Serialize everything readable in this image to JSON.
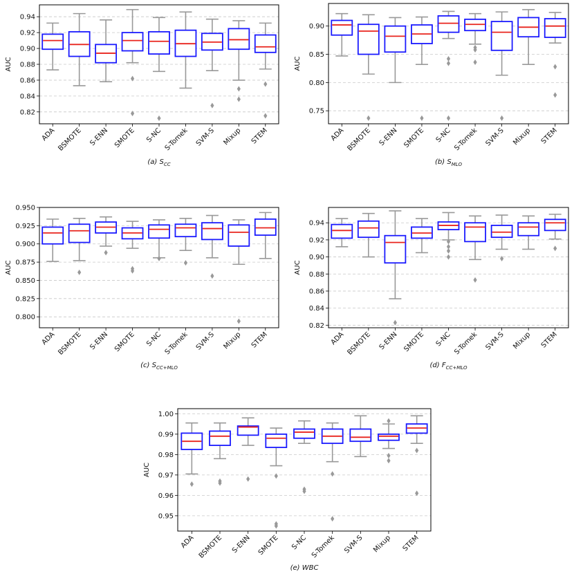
{
  "chart_data": [
    {
      "type": "box",
      "caption": "(a) S",
      "caption_sub": "CC",
      "ylabel": "AUC",
      "ylim": [
        0.805,
        0.955
      ],
      "yticks": [
        0.82,
        0.84,
        0.86,
        0.88,
        0.9,
        0.92,
        0.94
      ],
      "ytick_labels": [
        "0.82",
        "0.84",
        "0.86",
        "0.88",
        "0.90",
        "0.92",
        "0.94"
      ],
      "grid": true,
      "categories": [
        "ADA",
        "BSMOTE",
        "S-ENN",
        "SMOTE",
        "S-NC",
        "S-Tomek",
        "SVM-S",
        "Mixup",
        "STEM"
      ],
      "boxes": [
        {
          "whislo": 0.873,
          "q1": 0.899,
          "med": 0.91,
          "q3": 0.918,
          "whishi": 0.932,
          "fliers": []
        },
        {
          "whislo": 0.853,
          "q1": 0.89,
          "med": 0.905,
          "q3": 0.921,
          "whishi": 0.944,
          "fliers": []
        },
        {
          "whislo": 0.858,
          "q1": 0.882,
          "med": 0.894,
          "q3": 0.905,
          "whishi": 0.936,
          "fliers": []
        },
        {
          "whislo": 0.882,
          "q1": 0.897,
          "med": 0.91,
          "q3": 0.92,
          "whishi": 0.949,
          "fliers": [
            0.862,
            0.818
          ]
        },
        {
          "whislo": 0.871,
          "q1": 0.893,
          "med": 0.909,
          "q3": 0.921,
          "whishi": 0.939,
          "fliers": [
            0.812
          ]
        },
        {
          "whislo": 0.85,
          "q1": 0.89,
          "med": 0.906,
          "q3": 0.923,
          "whishi": 0.946,
          "fliers": []
        },
        {
          "whislo": 0.872,
          "q1": 0.898,
          "med": 0.908,
          "q3": 0.919,
          "whishi": 0.937,
          "fliers": [
            0.828
          ]
        },
        {
          "whislo": 0.86,
          "q1": 0.899,
          "med": 0.911,
          "q3": 0.925,
          "whishi": 0.935,
          "fliers": [
            0.849,
            0.836
          ]
        },
        {
          "whislo": 0.874,
          "q1": 0.895,
          "med": 0.902,
          "q3": 0.917,
          "whishi": 0.932,
          "fliers": [
            0.855,
            0.815
          ]
        }
      ]
    },
    {
      "type": "box",
      "caption": "(b) S",
      "caption_sub": "MLO",
      "ylabel": "AUC",
      "ylim": [
        0.727,
        0.94
      ],
      "yticks": [
        0.75,
        0.8,
        0.85,
        0.9
      ],
      "ytick_labels": [
        "0.75",
        "0.80",
        "0.85",
        "0.90"
      ],
      "grid": true,
      "categories": [
        "ADA",
        "BSMOTE",
        "S-ENN",
        "SMOTE",
        "S-NC",
        "S-Tomek",
        "SVM-S",
        "Mixup",
        "STEM"
      ],
      "boxes": [
        {
          "whislo": 0.847,
          "q1": 0.884,
          "med": 0.902,
          "q3": 0.91,
          "whishi": 0.922,
          "fliers": []
        },
        {
          "whislo": 0.815,
          "q1": 0.85,
          "med": 0.891,
          "q3": 0.903,
          "whishi": 0.92,
          "fliers": [
            0.737
          ]
        },
        {
          "whislo": 0.8,
          "q1": 0.854,
          "med": 0.882,
          "q3": 0.9,
          "whishi": 0.915,
          "fliers": []
        },
        {
          "whislo": 0.832,
          "q1": 0.869,
          "med": 0.886,
          "q3": 0.902,
          "whishi": 0.916,
          "fliers": [
            0.737
          ]
        },
        {
          "whislo": 0.878,
          "q1": 0.889,
          "med": 0.905,
          "q3": 0.918,
          "whishi": 0.926,
          "fliers": [
            0.842,
            0.834,
            0.737
          ]
        },
        {
          "whislo": 0.868,
          "q1": 0.892,
          "med": 0.903,
          "q3": 0.912,
          "whishi": 0.922,
          "fliers": [
            0.862,
            0.858,
            0.836
          ]
        },
        {
          "whislo": 0.813,
          "q1": 0.857,
          "med": 0.889,
          "q3": 0.908,
          "whishi": 0.925,
          "fliers": [
            0.737
          ]
        },
        {
          "whislo": 0.832,
          "q1": 0.881,
          "med": 0.898,
          "q3": 0.915,
          "whishi": 0.929,
          "fliers": []
        },
        {
          "whislo": 0.87,
          "q1": 0.88,
          "med": 0.9,
          "q3": 0.913,
          "whishi": 0.924,
          "fliers": [
            0.828,
            0.778
          ]
        }
      ]
    },
    {
      "type": "box",
      "caption": "(c) S",
      "caption_sub": "CC+MLO",
      "ylabel": "AUC",
      "ylim": [
        0.785,
        0.95
      ],
      "yticks": [
        0.8,
        0.825,
        0.85,
        0.875,
        0.9,
        0.925,
        0.95
      ],
      "ytick_labels": [
        "0.800",
        "0.825",
        "0.850",
        "0.875",
        "0.900",
        "0.925",
        "0.950"
      ],
      "grid": true,
      "categories": [
        "ADA",
        "BSMOTE",
        "S-ENN",
        "SMOTE",
        "S-NC",
        "S-Tomek",
        "SVM-S",
        "Mixup",
        "STEM"
      ],
      "boxes": [
        {
          "whislo": 0.876,
          "q1": 0.9,
          "med": 0.915,
          "q3": 0.923,
          "whishi": 0.934,
          "fliers": []
        },
        {
          "whislo": 0.877,
          "q1": 0.902,
          "med": 0.918,
          "q3": 0.927,
          "whishi": 0.935,
          "fliers": [
            0.861
          ]
        },
        {
          "whislo": 0.897,
          "q1": 0.915,
          "med": 0.923,
          "q3": 0.93,
          "whishi": 0.937,
          "fliers": [
            0.888
          ]
        },
        {
          "whislo": 0.894,
          "q1": 0.907,
          "med": 0.915,
          "q3": 0.922,
          "whishi": 0.931,
          "fliers": [
            0.866,
            0.863
          ]
        },
        {
          "whislo": 0.881,
          "q1": 0.908,
          "med": 0.92,
          "q3": 0.926,
          "whishi": 0.933,
          "fliers": [
            0.88
          ]
        },
        {
          "whislo": 0.891,
          "q1": 0.91,
          "med": 0.922,
          "q3": 0.927,
          "whishi": 0.935,
          "fliers": [
            0.874
          ]
        },
        {
          "whislo": 0.881,
          "q1": 0.906,
          "med": 0.921,
          "q3": 0.929,
          "whishi": 0.939,
          "fliers": [
            0.856
          ]
        },
        {
          "whislo": 0.872,
          "q1": 0.897,
          "med": 0.916,
          "q3": 0.926,
          "whishi": 0.933,
          "fliers": [
            0.794
          ]
        },
        {
          "whislo": 0.88,
          "q1": 0.912,
          "med": 0.922,
          "q3": 0.934,
          "whishi": 0.943,
          "fliers": []
        }
      ]
    },
    {
      "type": "box",
      "caption": "(d) F",
      "caption_sub": "CC+MLO",
      "ylabel": "AUC",
      "ylim": [
        0.817,
        0.958
      ],
      "yticks": [
        0.82,
        0.84,
        0.86,
        0.88,
        0.9,
        0.92,
        0.94
      ],
      "ytick_labels": [
        "0.82",
        "0.84",
        "0.86",
        "0.88",
        "0.90",
        "0.92",
        "0.94"
      ],
      "grid": true,
      "categories": [
        "ADA",
        "BSMOTE",
        "S-ENN",
        "SMOTE",
        "S-NC",
        "S-Tomek",
        "SVM-S",
        "Mixup",
        "STEM"
      ],
      "boxes": [
        {
          "whislo": 0.912,
          "q1": 0.922,
          "med": 0.931,
          "q3": 0.938,
          "whishi": 0.945,
          "fliers": []
        },
        {
          "whislo": 0.9,
          "q1": 0.923,
          "med": 0.934,
          "q3": 0.942,
          "whishi": 0.951,
          "fliers": []
        },
        {
          "whislo": 0.851,
          "q1": 0.893,
          "med": 0.917,
          "q3": 0.925,
          "whishi": 0.954,
          "fliers": [
            0.823
          ]
        },
        {
          "whislo": 0.905,
          "q1": 0.922,
          "med": 0.928,
          "q3": 0.935,
          "whishi": 0.945,
          "fliers": []
        },
        {
          "whislo": 0.92,
          "q1": 0.932,
          "med": 0.937,
          "q3": 0.941,
          "whishi": 0.952,
          "fliers": [
            0.918,
            0.912,
            0.907,
            0.9
          ]
        },
        {
          "whislo": 0.897,
          "q1": 0.918,
          "med": 0.935,
          "q3": 0.94,
          "whishi": 0.948,
          "fliers": [
            0.873
          ]
        },
        {
          "whislo": 0.909,
          "q1": 0.923,
          "med": 0.929,
          "q3": 0.937,
          "whishi": 0.949,
          "fliers": [
            0.898
          ]
        },
        {
          "whislo": 0.909,
          "q1": 0.925,
          "med": 0.935,
          "q3": 0.94,
          "whishi": 0.948,
          "fliers": []
        },
        {
          "whislo": 0.921,
          "q1": 0.931,
          "med": 0.94,
          "q3": 0.944,
          "whishi": 0.95,
          "fliers": [
            0.91
          ]
        }
      ]
    },
    {
      "type": "box",
      "caption": "(e) WBC",
      "caption_sub": "",
      "ylabel": "AUC",
      "ylim": [
        0.9425,
        1.0025
      ],
      "yticks": [
        0.95,
        0.96,
        0.97,
        0.98,
        0.99,
        1.0
      ],
      "ytick_labels": [
        "0.95",
        "0.96",
        "0.97",
        "0.98",
        "0.99",
        "1.00"
      ],
      "grid": true,
      "categories": [
        "ADA",
        "BSMOTE",
        "S-ENN",
        "SMOTE",
        "S-NC",
        "S-Tomek",
        "SVM-S",
        "Mixup",
        "STEM"
      ],
      "boxes": [
        {
          "whislo": 0.9705,
          "q1": 0.9825,
          "med": 0.9865,
          "q3": 0.9905,
          "whishi": 0.9955,
          "fliers": [
            0.9655
          ]
        },
        {
          "whislo": 0.978,
          "q1": 0.9845,
          "med": 0.989,
          "q3": 0.9915,
          "whishi": 0.9955,
          "fliers": [
            0.967,
            0.966
          ]
        },
        {
          "whislo": 0.9845,
          "q1": 0.9895,
          "med": 0.9935,
          "q3": 0.994,
          "whishi": 0.998,
          "fliers": [
            0.968
          ]
        },
        {
          "whislo": 0.9745,
          "q1": 0.9835,
          "med": 0.988,
          "q3": 0.99,
          "whishi": 0.993,
          "fliers": [
            0.9695,
            0.946,
            0.945
          ]
        },
        {
          "whislo": 0.9855,
          "q1": 0.988,
          "med": 0.991,
          "q3": 0.9925,
          "whishi": 0.9965,
          "fliers": [
            0.963,
            0.962
          ]
        },
        {
          "whislo": 0.9765,
          "q1": 0.9855,
          "med": 0.989,
          "q3": 0.9925,
          "whishi": 0.9955,
          "fliers": [
            0.9705,
            0.9485
          ]
        },
        {
          "whislo": 0.979,
          "q1": 0.9865,
          "med": 0.9885,
          "q3": 0.9925,
          "whishi": 0.999,
          "fliers": []
        },
        {
          "whislo": 0.983,
          "q1": 0.987,
          "med": 0.989,
          "q3": 0.99,
          "whishi": 0.995,
          "fliers": [
            0.9965,
            0.9795,
            0.977
          ]
        },
        {
          "whislo": 0.9855,
          "q1": 0.9905,
          "med": 0.993,
          "q3": 0.995,
          "whishi": 0.999,
          "fliers": [
            0.982,
            0.961
          ]
        }
      ]
    }
  ]
}
